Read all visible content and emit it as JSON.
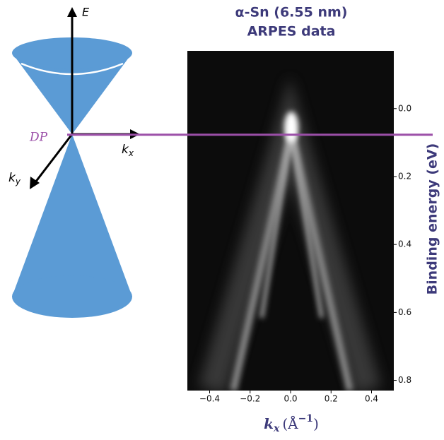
{
  "chart_data": {
    "type": "image",
    "title_lines": [
      "α-Sn (6.55 nm)",
      "ARPES data"
    ],
    "xlabel_parts": [
      "k",
      "x",
      "(Å",
      "−1",
      ")"
    ],
    "ylabel": "Binding energy (eV)",
    "xlim": [
      -0.51,
      0.51
    ],
    "ylim": [
      -0.17,
      0.83
    ],
    "y_inverted": true,
    "xticks": [
      {
        "value": -0.4,
        "label": "−0.4"
      },
      {
        "value": -0.2,
        "label": "−0.2"
      },
      {
        "value": 0,
        "label": "0.0"
      },
      {
        "value": 0.2,
        "label": "0.2"
      },
      {
        "value": 0.4,
        "label": "0.4"
      }
    ],
    "yticks": [
      {
        "value": 0,
        "label": "0.0"
      },
      {
        "value": 0.2,
        "label": "0.2"
      },
      {
        "value": 0.4,
        "label": "0.4"
      },
      {
        "value": 0.6,
        "label": "0.6"
      },
      {
        "value": 0.8,
        "label": "0.8"
      }
    ],
    "reference_line": 0.077,
    "reference_color": "#9b4fa8",
    "label_color": "#3d3a7a"
  },
  "diagram": {
    "energy_axis": "E",
    "dirac_point": "DP",
    "kx": [
      "k",
      "x"
    ],
    "ky": [
      "k",
      "y"
    ]
  }
}
